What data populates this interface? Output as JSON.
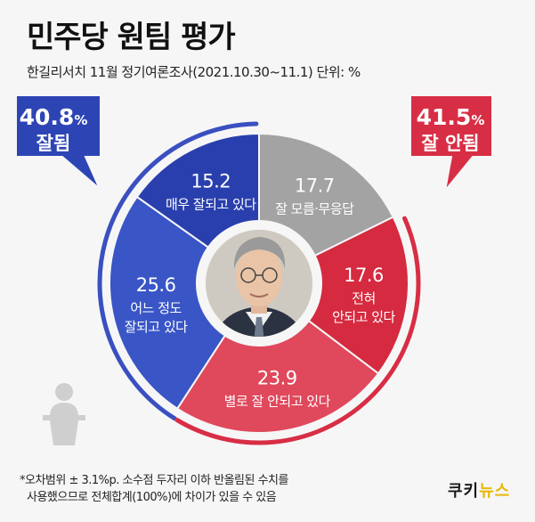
{
  "header": {
    "title": "민주당 원팀 평가",
    "subtitle": "한길리서치 11월 정기여론조사(2021.10.30~11.1) 단위: %"
  },
  "summary": {
    "positive": {
      "value": "40.8",
      "unit": "%",
      "label": "잘됨",
      "color": "#2d45b4"
    },
    "negative": {
      "value": "41.5",
      "unit": "%",
      "label": "잘 안됨",
      "color": "#d82e45"
    }
  },
  "chart_data": {
    "type": "pie",
    "title": "민주당 원팀 평가",
    "unit": "%",
    "slices": [
      {
        "value": 17.7,
        "value_label": "17.7",
        "label_lines": [
          "잘 모름·무응답"
        ],
        "color": "#a3a3a3"
      },
      {
        "value": 17.6,
        "value_label": "17.6",
        "label_lines": [
          "전혀",
          "안되고 있다"
        ],
        "color": "#d52a3f"
      },
      {
        "value": 23.9,
        "value_label": "23.9",
        "label_lines": [
          "별로 잘 안되고 있다"
        ],
        "color": "#e0485c"
      },
      {
        "value": 25.6,
        "value_label": "25.6",
        "label_lines": [
          "어느 정도",
          "잘되고 있다"
        ],
        "color": "#3955c6"
      },
      {
        "value": 15.2,
        "value_label": "15.2",
        "label_lines": [
          "매우 잘되고 있다"
        ],
        "color": "#2a3fae"
      }
    ]
  },
  "footnote": {
    "line1": "*오차범위 ± 3.1%p. 소수점 두자리 이하 반올림된 수치를",
    "line2": "사용했으므로 전체합계(100%)에 차이가 있을 수 있음"
  },
  "logo": {
    "part1": "쿠키",
    "part2": "뉴스"
  }
}
